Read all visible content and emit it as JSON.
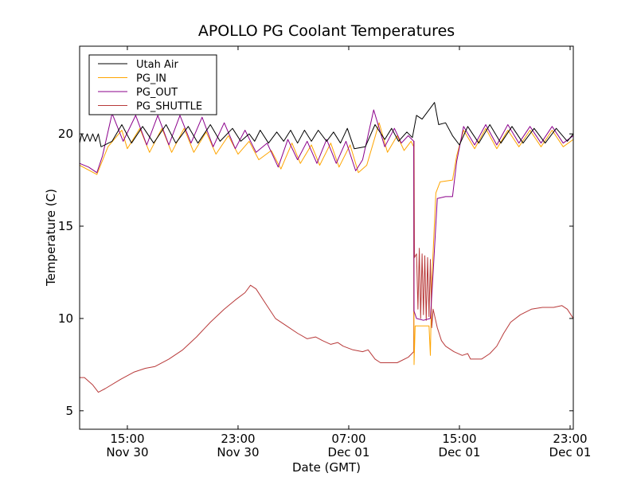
{
  "chart_data": {
    "type": "line",
    "title": "APOLLO PG Coolant Temperatures",
    "xlabel": "Date (GMT)",
    "ylabel": "Temperature (C)",
    "x_units": "hours since Nov 30 00:00 GMT",
    "xlim": [
      11.55,
      47.23
    ],
    "ylim": [
      4,
      24.75
    ],
    "grid": false,
    "legend_position": "top-left",
    "yticks": [
      {
        "value": 5,
        "label": "5"
      },
      {
        "value": 10,
        "label": "10"
      },
      {
        "value": 15,
        "label": "15"
      },
      {
        "value": 20,
        "label": "20"
      }
    ],
    "xticks": [
      {
        "value": 15,
        "time": "15:00",
        "date": "Nov 30"
      },
      {
        "value": 23,
        "time": "23:00",
        "date": "Nov 30"
      },
      {
        "value": 31,
        "time": "07:00",
        "date": "Dec 01"
      },
      {
        "value": 39,
        "time": "15:00",
        "date": "Dec 01"
      },
      {
        "value": 47,
        "time": "23:00",
        "date": "Dec 01"
      }
    ],
    "series": [
      {
        "name": "Utah Air",
        "color": "#000000",
        "points": [
          [
            11.55,
            19.5
          ],
          [
            11.7,
            20.0
          ],
          [
            11.9,
            19.6
          ],
          [
            12.1,
            20.0
          ],
          [
            12.3,
            19.6
          ],
          [
            12.5,
            20.0
          ],
          [
            12.7,
            19.6
          ],
          [
            12.9,
            20.0
          ],
          [
            13.1,
            19.3
          ],
          [
            13.9,
            19.6
          ],
          [
            14.6,
            20.5
          ],
          [
            15.3,
            19.5
          ],
          [
            16.1,
            20.4
          ],
          [
            16.9,
            19.5
          ],
          [
            17.8,
            20.5
          ],
          [
            18.5,
            19.5
          ],
          [
            19.4,
            20.4
          ],
          [
            20.1,
            19.5
          ],
          [
            21.0,
            20.5
          ],
          [
            21.7,
            19.6
          ],
          [
            22.6,
            20.3
          ],
          [
            23.2,
            19.6
          ],
          [
            23.8,
            20.0
          ],
          [
            24.2,
            19.6
          ],
          [
            24.6,
            20.2
          ],
          [
            25.2,
            19.5
          ],
          [
            25.8,
            20.1
          ],
          [
            26.3,
            19.6
          ],
          [
            26.8,
            20.2
          ],
          [
            27.3,
            19.5
          ],
          [
            27.8,
            20.2
          ],
          [
            28.3,
            19.6
          ],
          [
            28.8,
            20.2
          ],
          [
            29.4,
            19.6
          ],
          [
            29.9,
            20.1
          ],
          [
            30.4,
            19.5
          ],
          [
            30.9,
            20.3
          ],
          [
            31.4,
            19.2
          ],
          [
            32.2,
            19.3
          ],
          [
            32.9,
            20.5
          ],
          [
            33.6,
            19.7
          ],
          [
            34.1,
            20.3
          ],
          [
            34.6,
            19.6
          ],
          [
            35.2,
            20.1
          ],
          [
            35.6,
            19.8
          ],
          [
            35.9,
            21.0
          ],
          [
            36.3,
            20.8
          ],
          [
            36.9,
            21.4
          ],
          [
            37.2,
            21.7
          ],
          [
            37.5,
            20.5
          ],
          [
            38.0,
            20.6
          ],
          [
            38.5,
            19.9
          ],
          [
            39.0,
            19.4
          ],
          [
            39.6,
            20.4
          ],
          [
            40.4,
            19.5
          ],
          [
            41.2,
            20.5
          ],
          [
            42.0,
            19.5
          ],
          [
            42.8,
            20.4
          ],
          [
            43.6,
            19.5
          ],
          [
            44.4,
            20.3
          ],
          [
            45.2,
            19.5
          ],
          [
            46.0,
            20.3
          ],
          [
            46.8,
            19.6
          ],
          [
            47.23,
            20.0
          ]
        ]
      },
      {
        "name": "PG_IN",
        "color": "#ffa500",
        "points": [
          [
            11.55,
            18.3
          ],
          [
            12.8,
            17.8
          ],
          [
            13.6,
            19.3
          ],
          [
            14.6,
            20.2
          ],
          [
            15.0,
            19.2
          ],
          [
            15.9,
            20.3
          ],
          [
            16.6,
            19.0
          ],
          [
            17.5,
            20.3
          ],
          [
            18.2,
            19.0
          ],
          [
            19.1,
            20.3
          ],
          [
            19.8,
            19.0
          ],
          [
            20.7,
            20.1
          ],
          [
            21.4,
            18.9
          ],
          [
            22.3,
            19.9
          ],
          [
            23.0,
            18.9
          ],
          [
            23.8,
            19.6
          ],
          [
            24.5,
            18.6
          ],
          [
            25.4,
            19.1
          ],
          [
            26.1,
            18.1
          ],
          [
            26.9,
            19.5
          ],
          [
            27.5,
            18.4
          ],
          [
            28.3,
            19.4
          ],
          [
            28.9,
            18.3
          ],
          [
            29.7,
            19.5
          ],
          [
            30.3,
            18.2
          ],
          [
            31.1,
            19.4
          ],
          [
            31.7,
            17.9
          ],
          [
            32.3,
            18.3
          ],
          [
            33.2,
            20.6
          ],
          [
            33.8,
            19.0
          ],
          [
            34.5,
            19.9
          ],
          [
            35.0,
            19.1
          ],
          [
            35.5,
            19.6
          ],
          [
            35.7,
            19.3
          ],
          [
            35.72,
            7.5
          ],
          [
            35.8,
            9.6
          ],
          [
            36.4,
            9.6
          ],
          [
            36.8,
            9.6
          ],
          [
            36.9,
            8.0
          ],
          [
            37.0,
            12.0
          ],
          [
            37.3,
            16.8
          ],
          [
            37.6,
            17.4
          ],
          [
            38.5,
            17.5
          ],
          [
            38.8,
            18.8
          ],
          [
            39.3,
            20.2
          ],
          [
            40.1,
            19.2
          ],
          [
            40.9,
            20.3
          ],
          [
            41.7,
            19.2
          ],
          [
            42.5,
            20.2
          ],
          [
            43.3,
            19.3
          ],
          [
            44.1,
            20.2
          ],
          [
            44.9,
            19.3
          ],
          [
            45.7,
            20.2
          ],
          [
            46.5,
            19.3
          ],
          [
            47.23,
            19.7
          ]
        ]
      },
      {
        "name": "PG_OUT",
        "color": "#8b008b",
        "points": [
          [
            11.55,
            18.4
          ],
          [
            12.2,
            18.2
          ],
          [
            12.8,
            17.9
          ],
          [
            13.2,
            18.8
          ],
          [
            13.9,
            21.1
          ],
          [
            14.7,
            19.6
          ],
          [
            15.6,
            21.0
          ],
          [
            16.4,
            19.4
          ],
          [
            17.2,
            21.0
          ],
          [
            18.0,
            19.4
          ],
          [
            18.8,
            21.0
          ],
          [
            19.6,
            19.5
          ],
          [
            20.4,
            20.9
          ],
          [
            21.2,
            19.3
          ],
          [
            22.0,
            20.6
          ],
          [
            22.8,
            19.2
          ],
          [
            23.5,
            20.2
          ],
          [
            24.3,
            19.0
          ],
          [
            25.1,
            19.5
          ],
          [
            25.9,
            18.2
          ],
          [
            26.6,
            19.7
          ],
          [
            27.3,
            18.6
          ],
          [
            28.0,
            19.6
          ],
          [
            28.7,
            18.4
          ],
          [
            29.4,
            19.7
          ],
          [
            30.1,
            18.4
          ],
          [
            30.8,
            19.6
          ],
          [
            31.5,
            18.0
          ],
          [
            32.0,
            18.6
          ],
          [
            32.8,
            21.3
          ],
          [
            33.6,
            19.3
          ],
          [
            34.3,
            20.3
          ],
          [
            34.8,
            19.5
          ],
          [
            35.3,
            19.9
          ],
          [
            35.7,
            19.6
          ],
          [
            35.72,
            10.4
          ],
          [
            35.9,
            10.0
          ],
          [
            36.4,
            9.9
          ],
          [
            36.9,
            10.0
          ],
          [
            37.1,
            12.5
          ],
          [
            37.4,
            16.5
          ],
          [
            38.0,
            16.6
          ],
          [
            38.5,
            16.6
          ],
          [
            38.8,
            18.5
          ],
          [
            39.3,
            20.4
          ],
          [
            40.1,
            19.4
          ],
          [
            40.9,
            20.5
          ],
          [
            41.7,
            19.4
          ],
          [
            42.5,
            20.5
          ],
          [
            43.3,
            19.5
          ],
          [
            44.1,
            20.4
          ],
          [
            44.9,
            19.5
          ],
          [
            45.7,
            20.4
          ],
          [
            46.5,
            19.5
          ],
          [
            47.23,
            19.9
          ]
        ]
      },
      {
        "name": "PG_SHUTTLE",
        "color": "#b83a3a",
        "points": [
          [
            11.55,
            6.8
          ],
          [
            11.9,
            6.8
          ],
          [
            12.5,
            6.4
          ],
          [
            12.9,
            6.0
          ],
          [
            13.4,
            6.2
          ],
          [
            14.5,
            6.7
          ],
          [
            15.5,
            7.1
          ],
          [
            16.3,
            7.3
          ],
          [
            17.0,
            7.4
          ],
          [
            18.0,
            7.8
          ],
          [
            19.0,
            8.3
          ],
          [
            20.0,
            9.0
          ],
          [
            21.0,
            9.8
          ],
          [
            22.0,
            10.5
          ],
          [
            22.8,
            11.0
          ],
          [
            23.5,
            11.4
          ],
          [
            23.9,
            11.8
          ],
          [
            24.3,
            11.6
          ],
          [
            25.0,
            10.8
          ],
          [
            25.7,
            10.0
          ],
          [
            26.5,
            9.6
          ],
          [
            27.3,
            9.2
          ],
          [
            28.0,
            8.9
          ],
          [
            28.6,
            9.0
          ],
          [
            29.1,
            8.8
          ],
          [
            29.7,
            8.6
          ],
          [
            30.2,
            8.7
          ],
          [
            30.6,
            8.5
          ],
          [
            31.3,
            8.3
          ],
          [
            32.0,
            8.2
          ],
          [
            32.4,
            8.3
          ],
          [
            32.9,
            7.8
          ],
          [
            33.3,
            7.6
          ],
          [
            34.5,
            7.6
          ],
          [
            35.3,
            7.9
          ],
          [
            35.7,
            8.2
          ],
          [
            35.72,
            19.6
          ],
          [
            35.75,
            13.3
          ],
          [
            35.9,
            13.5
          ],
          [
            36.0,
            10.5
          ],
          [
            36.1,
            13.8
          ],
          [
            36.2,
            10.0
          ],
          [
            36.3,
            13.5
          ],
          [
            36.4,
            10.2
          ],
          [
            36.5,
            13.4
          ],
          [
            36.6,
            9.9
          ],
          [
            36.7,
            13.3
          ],
          [
            36.8,
            10.1
          ],
          [
            36.9,
            13.2
          ],
          [
            37.0,
            9.5
          ],
          [
            37.1,
            10.5
          ],
          [
            37.4,
            9.5
          ],
          [
            37.7,
            8.8
          ],
          [
            38.0,
            8.5
          ],
          [
            38.6,
            8.2
          ],
          [
            39.2,
            8.0
          ],
          [
            39.6,
            8.1
          ],
          [
            39.8,
            7.8
          ],
          [
            40.6,
            7.8
          ],
          [
            41.2,
            8.1
          ],
          [
            41.7,
            8.5
          ],
          [
            42.2,
            9.2
          ],
          [
            42.7,
            9.8
          ],
          [
            43.4,
            10.2
          ],
          [
            44.2,
            10.5
          ],
          [
            45.0,
            10.6
          ],
          [
            45.8,
            10.6
          ],
          [
            46.4,
            10.7
          ],
          [
            46.8,
            10.5
          ],
          [
            47.23,
            10.0
          ]
        ]
      }
    ]
  }
}
